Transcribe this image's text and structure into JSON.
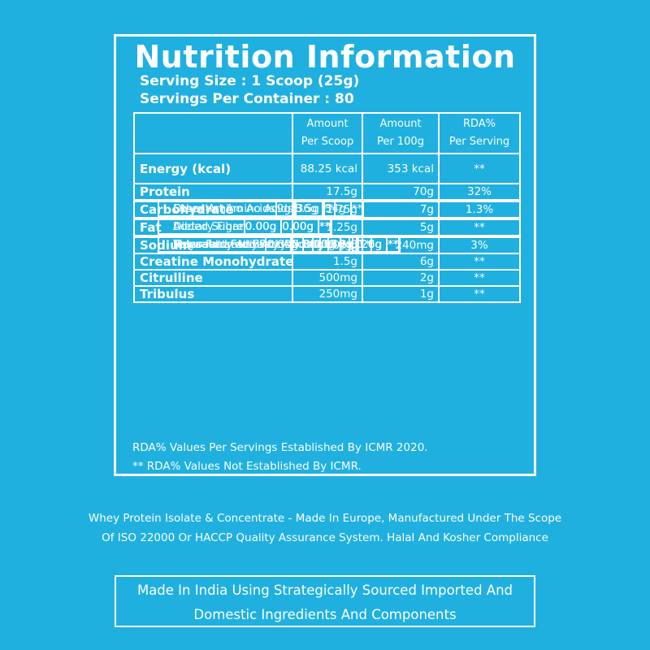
{
  "panel": {
    "title": "Nutrition Information",
    "serving_size": "Serving Size : 1 Scoop (25g)",
    "servings_per_container": "Servings Per Container : 80"
  },
  "table": {
    "headers": {
      "per_scoop_1": "Amount",
      "per_scoop_2": "Per Scoop",
      "per_100g_1": "Amount",
      "per_100g_2": "Per 100g",
      "rda_1": "RDA%",
      "rda_2": "Per Serving"
    },
    "rows": [
      {
        "name": "Energy (kcal)",
        "scoop": "88.25 kcal",
        "per100": "353 kcal",
        "rda": "**"
      },
      {
        "name": "Protein",
        "scoop": "17.5g",
        "per100": "70g",
        "rda": "32%"
      },
      {
        "name": "Essential Amino Acids",
        "scoop": "8.5g",
        "per100": "34g",
        "rda": "**"
      },
      {
        "name": "Other Amino Acids",
        "scoop": "9g",
        "per100": "36g",
        "rda": "**"
      },
      {
        "name": "Carbohydrate",
        "scoop": "1.75g",
        "per100": "7g",
        "rda": "1.3%"
      },
      {
        "name": "Added Sugar",
        "scoop": "0.00g",
        "per100": "0.00g",
        "rda": "**"
      },
      {
        "name": "Dietary Fibre",
        "scoop": "0.00g",
        "per100": "0.00g",
        "rda": "**"
      },
      {
        "name": "Fat",
        "scoop": "1.25g",
        "per100": "5g",
        "rda": "**"
      },
      {
        "name": "Saturated Fatty Acids",
        "scoop": "0.80g",
        "per100": "3.2g",
        "rda": "**"
      },
      {
        "name": "Monosaturated Fatty Acids",
        "scoop": "0.40g",
        "per100": "1.6g",
        "rda": "**"
      },
      {
        "name": "Polysaturated Fatty Acids",
        "scoop": "0.05g",
        "per100": "0.20g",
        "rda": "**"
      },
      {
        "name": "Trans Fatty Acids",
        "scoop": "0.00g",
        "per100": "0.00g",
        "rda": "**"
      },
      {
        "name": "Sodium",
        "scoop": "60mg",
        "per100": "240mg",
        "rda": "3%"
      },
      {
        "name": "Creatine Monohydrate",
        "scoop": "1.5g",
        "per100": "6g",
        "rda": "**"
      },
      {
        "name": "Citrulline",
        "scoop": "500mg",
        "per100": "2g",
        "rda": "**"
      },
      {
        "name": "Tribulus",
        "scoop": "250mg",
        "per100": "1g",
        "rda": "**"
      }
    ]
  },
  "footnotes": {
    "rda_note": "RDA%  Values Per Servings Established By ICMR 2020.",
    "not_established": "** RDA%  Values Not Established By ICMR."
  },
  "description": {
    "line1": "Whey Protein Isolate & Concentrate - Made In Europe, Manufactured Under The Scope",
    "line2": "Of ISO 22000 Or HACCP Quality Assurance System. Halal And Kosher Compliance"
  },
  "made_in": {
    "line1": "Made In India Using Strategically Sourced Imported And",
    "line2": "Domestic Ingredients And Components"
  },
  "colors": {
    "background": "#1fb0e0",
    "text": "#ffffff"
  }
}
